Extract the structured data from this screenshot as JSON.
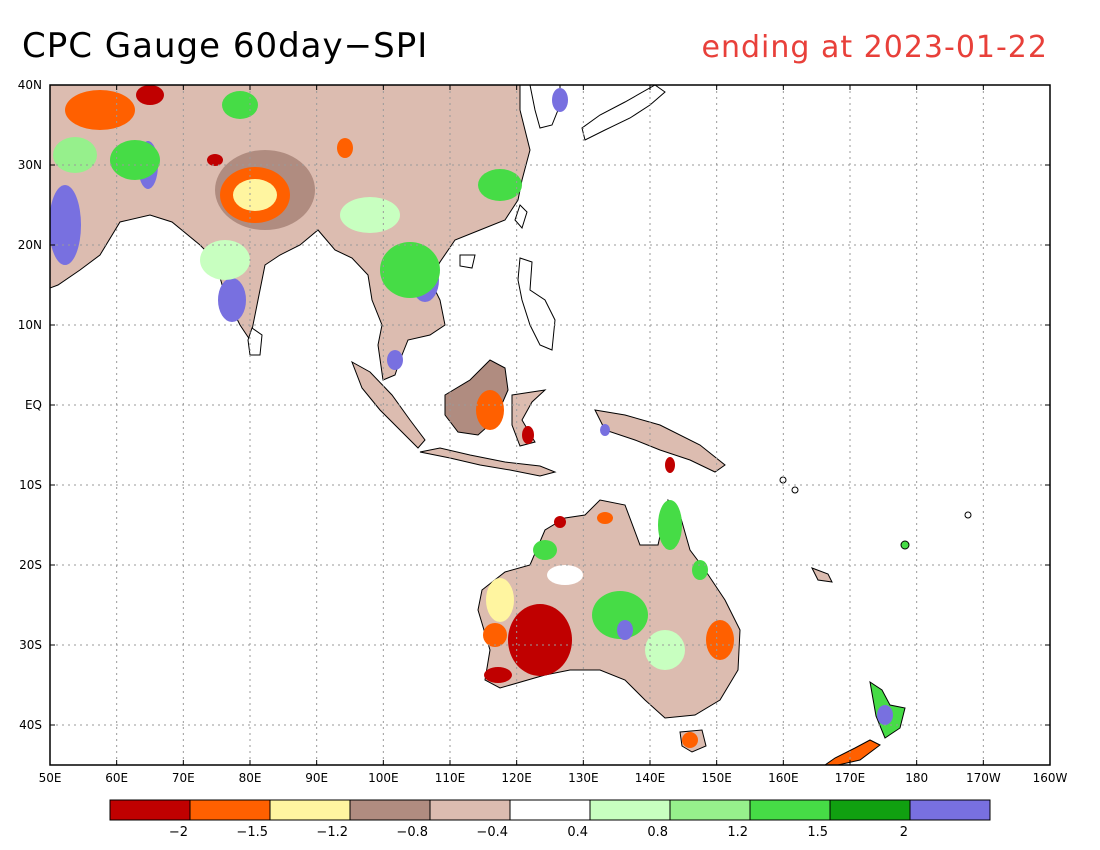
{
  "title": "CPC Gauge 60day−SPI",
  "subtitle": "ending at 2023-01-22",
  "map": {
    "lon_range": [
      50,
      200
    ],
    "lat_range": [
      -45,
      40
    ],
    "lat_ticks": [
      {
        "value": 40,
        "label": "40N"
      },
      {
        "value": 30,
        "label": "30N"
      },
      {
        "value": 20,
        "label": "20N"
      },
      {
        "value": 10,
        "label": "10N"
      },
      {
        "value": 0,
        "label": "EQ"
      },
      {
        "value": -10,
        "label": "10S"
      },
      {
        "value": -20,
        "label": "20S"
      },
      {
        "value": -30,
        "label": "30S"
      },
      {
        "value": -40,
        "label": "40S"
      }
    ],
    "lon_ticks": [
      {
        "value": 50,
        "label": "50E"
      },
      {
        "value": 60,
        "label": "60E"
      },
      {
        "value": 70,
        "label": "70E"
      },
      {
        "value": 80,
        "label": "80E"
      },
      {
        "value": 90,
        "label": "90E"
      },
      {
        "value": 100,
        "label": "100E"
      },
      {
        "value": 110,
        "label": "110E"
      },
      {
        "value": 120,
        "label": "120E"
      },
      {
        "value": 130,
        "label": "130E"
      },
      {
        "value": 140,
        "label": "140E"
      },
      {
        "value": 150,
        "label": "150E"
      },
      {
        "value": 160,
        "label": "160E"
      },
      {
        "value": 170,
        "label": "170E"
      },
      {
        "value": 180,
        "label": "180"
      },
      {
        "value": 190,
        "label": "170W"
      },
      {
        "value": 200,
        "label": "160W"
      }
    ]
  },
  "colorbar": {
    "colors": [
      "#c00000",
      "#ff6000",
      "#fff5a0",
      "#b08c80",
      "#dcbcb0",
      "#ffffff",
      "#c8ffc0",
      "#96f08c",
      "#46dc46",
      "#10a010",
      "#7870e0"
    ],
    "labels": [
      "−2",
      "−1.5",
      "−1.2",
      "−0.8",
      "−0.4",
      "0.4",
      "0.8",
      "1.2",
      "1.5",
      "2"
    ]
  }
}
